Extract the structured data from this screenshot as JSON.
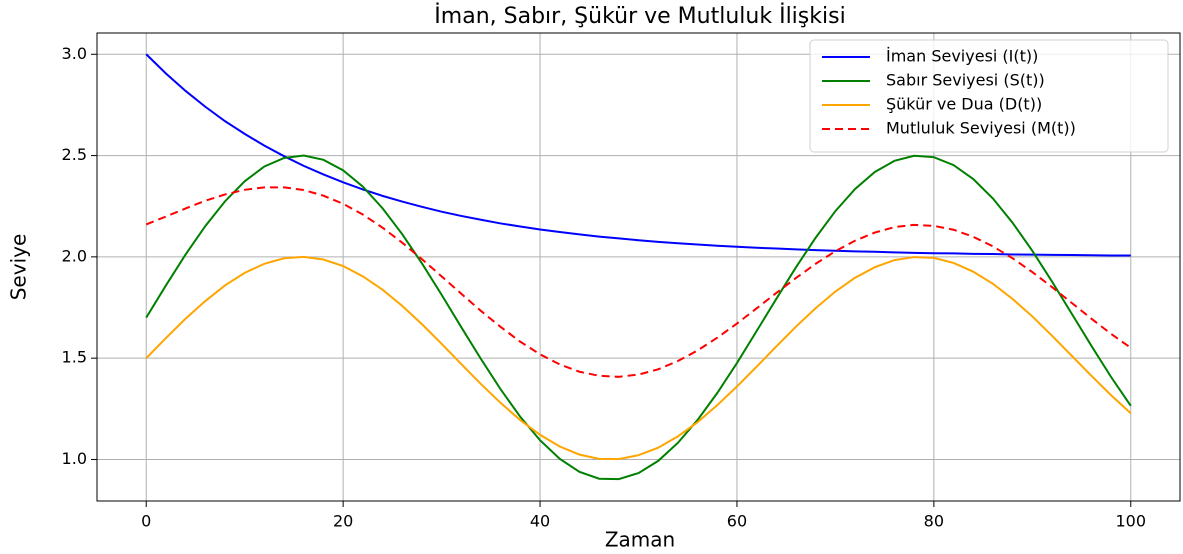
{
  "chart_data": {
    "type": "line",
    "title": "İman, Sabır, Şükür ve Mutluluk İlişkisi",
    "xlabel": "Zaman",
    "ylabel": "Seviye",
    "x": [
      0,
      2,
      4,
      6,
      8,
      10,
      12,
      14,
      16,
      18,
      20,
      22,
      24,
      26,
      28,
      30,
      32,
      34,
      36,
      38,
      40,
      42,
      44,
      46,
      48,
      50,
      52,
      54,
      56,
      58,
      60,
      62,
      64,
      66,
      68,
      70,
      72,
      74,
      76,
      78,
      80,
      82,
      84,
      86,
      88,
      90,
      92,
      94,
      96,
      98,
      100
    ],
    "series": [
      {
        "name": "İman Seviyesi (I(t))",
        "color": "#0000ff",
        "linestyle": "solid",
        "values": [
          3,
          2.905,
          2.819,
          2.741,
          2.67,
          2.607,
          2.549,
          2.497,
          2.449,
          2.407,
          2.368,
          2.333,
          2.301,
          2.273,
          2.247,
          2.223,
          2.202,
          2.183,
          2.165,
          2.15,
          2.135,
          2.123,
          2.111,
          2.1,
          2.091,
          2.082,
          2.074,
          2.067,
          2.061,
          2.055,
          2.05,
          2.045,
          2.041,
          2.037,
          2.033,
          2.03,
          2.027,
          2.025,
          2.022,
          2.02,
          2.018,
          2.017,
          2.015,
          2.014,
          2.012,
          2.011,
          2.01,
          2.009,
          2.008,
          2.007,
          2.007
        ]
      },
      {
        "name": "Sabır Seviyesi (S(t))",
        "color": "#008000",
        "linestyle": "solid",
        "values": [
          1.7,
          1.859,
          2.012,
          2.152,
          2.274,
          2.373,
          2.446,
          2.488,
          2.5,
          2.479,
          2.427,
          2.347,
          2.24,
          2.112,
          1.968,
          1.813,
          1.653,
          1.496,
          1.346,
          1.21,
          1.095,
          1.003,
          0.939,
          0.905,
          0.903,
          0.933,
          0.993,
          1.082,
          1.195,
          1.328,
          1.476,
          1.634,
          1.793,
          1.949,
          2.095,
          2.226,
          2.335,
          2.419,
          2.474,
          2.499,
          2.492,
          2.453,
          2.384,
          2.288,
          2.168,
          2.03,
          1.878,
          1.72,
          1.561,
          1.407,
          1.265
        ]
      },
      {
        "name": "Şükür ve Dua (D(t))",
        "color": "#ffa500",
        "linestyle": "solid",
        "values": [
          1.5,
          1.599,
          1.695,
          1.782,
          1.859,
          1.921,
          1.966,
          1.993,
          2.0,
          1.987,
          1.955,
          1.904,
          1.838,
          1.758,
          1.668,
          1.571,
          1.471,
          1.372,
          1.279,
          1.194,
          1.122,
          1.064,
          1.024,
          1.003,
          1.002,
          1.021,
          1.058,
          1.114,
          1.184,
          1.268,
          1.36,
          1.458,
          1.558,
          1.656,
          1.747,
          1.829,
          1.897,
          1.949,
          1.984,
          1.999,
          1.995,
          1.97,
          1.927,
          1.867,
          1.792,
          1.706,
          1.611,
          1.512,
          1.413,
          1.317,
          1.228
        ]
      },
      {
        "name": "Mutluluk Seviyesi (M(t))",
        "color": "#ff0000",
        "linestyle": "dashed",
        "values": [
          2.16,
          2.199,
          2.239,
          2.277,
          2.308,
          2.331,
          2.343,
          2.343,
          2.33,
          2.302,
          2.262,
          2.209,
          2.144,
          2.07,
          1.989,
          1.904,
          1.818,
          1.733,
          1.654,
          1.581,
          1.519,
          1.469,
          1.433,
          1.413,
          1.408,
          1.419,
          1.445,
          1.486,
          1.538,
          1.601,
          1.671,
          1.746,
          1.822,
          1.896,
          1.966,
          2.028,
          2.08,
          2.12,
          2.147,
          2.158,
          2.153,
          2.134,
          2.099,
          2.052,
          1.993,
          1.925,
          1.851,
          1.773,
          1.695,
          1.62,
          1.551
        ]
      }
    ],
    "xlim": [
      -5,
      105
    ],
    "xticks": [
      0,
      20,
      40,
      60,
      80,
      100
    ],
    "ylim": [
      0.795,
      3.105
    ],
    "yticks": [
      {
        "value": 1,
        "label": "1.0"
      },
      1.5,
      {
        "value": 2,
        "label": "2.0"
      },
      2.5,
      {
        "value": 3,
        "label": "3.0"
      }
    ],
    "grid": true,
    "legend": "upper right"
  }
}
